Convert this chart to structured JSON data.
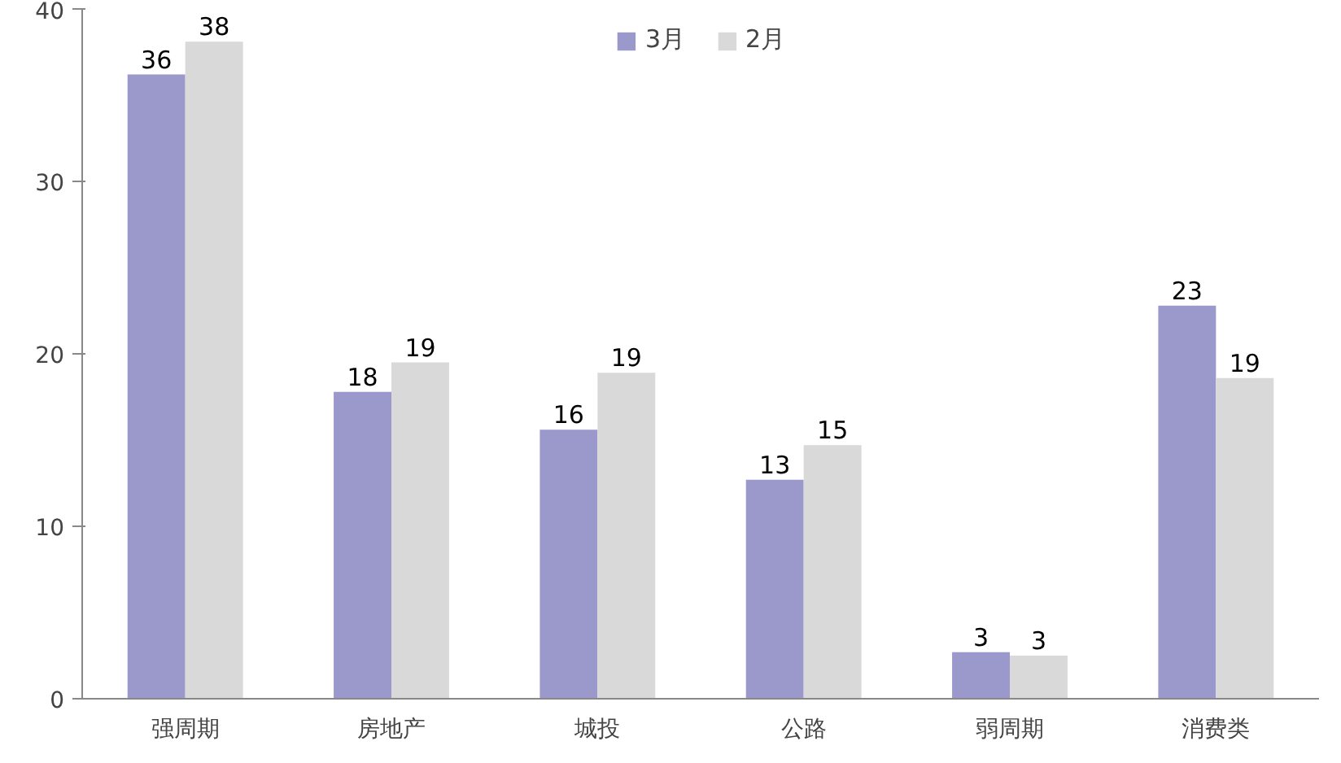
{
  "chart_data": {
    "type": "bar",
    "categories": [
      "强周期",
      "房地产",
      "城投",
      "公路",
      "弱周期",
      "消费类"
    ],
    "series": [
      {
        "name": "3月",
        "color": "#9b99cb",
        "values": [
          36.2,
          17.8,
          15.6,
          12.7,
          2.7,
          22.8
        ],
        "value_labels": [
          "36",
          "18",
          "16",
          "13",
          "3",
          "23"
        ]
      },
      {
        "name": "2月",
        "color": "#d9d9d9",
        "values": [
          38.1,
          19.5,
          18.9,
          14.7,
          2.5,
          18.6
        ],
        "value_labels": [
          "38",
          "19",
          "19",
          "15",
          "3",
          "19"
        ]
      }
    ],
    "ylim": [
      0,
      40
    ],
    "yticks": [
      0,
      10,
      20,
      30,
      40
    ],
    "grid": false,
    "legend": "top"
  }
}
